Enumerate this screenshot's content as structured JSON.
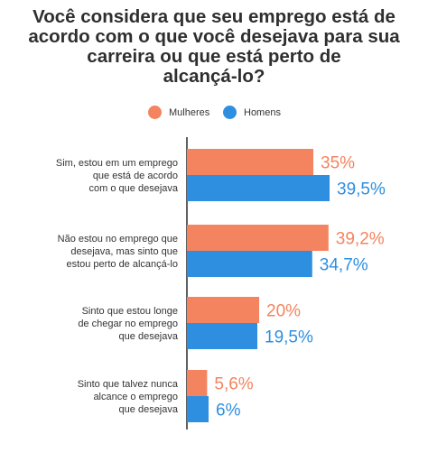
{
  "chart_data": {
    "type": "bar",
    "orientation": "horizontal",
    "title": "Você considera que seu emprego está de acordo com o que você desejava para sua carreira ou que está perto de alcançá-lo?",
    "title_lines": [
      "Você considera que seu emprego está de",
      "acordo com o que você desejava para sua",
      "carreira ou que está perto de",
      "alcançá-lo?"
    ],
    "legend_position": "top",
    "grid": false,
    "xlim": [
      0,
      40
    ],
    "categories": [
      "Sim, estou em um emprego que está de acordo com o que desejava",
      "Não estou no emprego que desejava, mas sinto que estou perto de alcançá-lo",
      "Sinto que estou longe de chegar no emprego que desejava",
      "Sinto que talvez nunca alcance o emprego que desejava"
    ],
    "category_lines": [
      [
        "Sim, estou em um emprego",
        "que está de acordo",
        "com o que desejava"
      ],
      [
        "Não estou no emprego que",
        "desejava, mas sinto que",
        "estou perto de alcançá-lo"
      ],
      [
        "Sinto que estou longe",
        "de chegar no emprego",
        "que desejava"
      ],
      [
        "Sinto que talvez nunca",
        "alcance o emprego",
        "que desejava"
      ]
    ],
    "series": [
      {
        "name": "Mulheres",
        "color": "#f4845f",
        "values": [
          35,
          39.2,
          20,
          5.6
        ],
        "labels": [
          "35%",
          "39,2%",
          "20%",
          "5,6%"
        ]
      },
      {
        "name": "Homens",
        "color": "#2e8fe0",
        "values": [
          39.5,
          34.7,
          19.5,
          6
        ],
        "labels": [
          "39,5%",
          "34,7%",
          "19,5%",
          "6%"
        ]
      }
    ]
  }
}
